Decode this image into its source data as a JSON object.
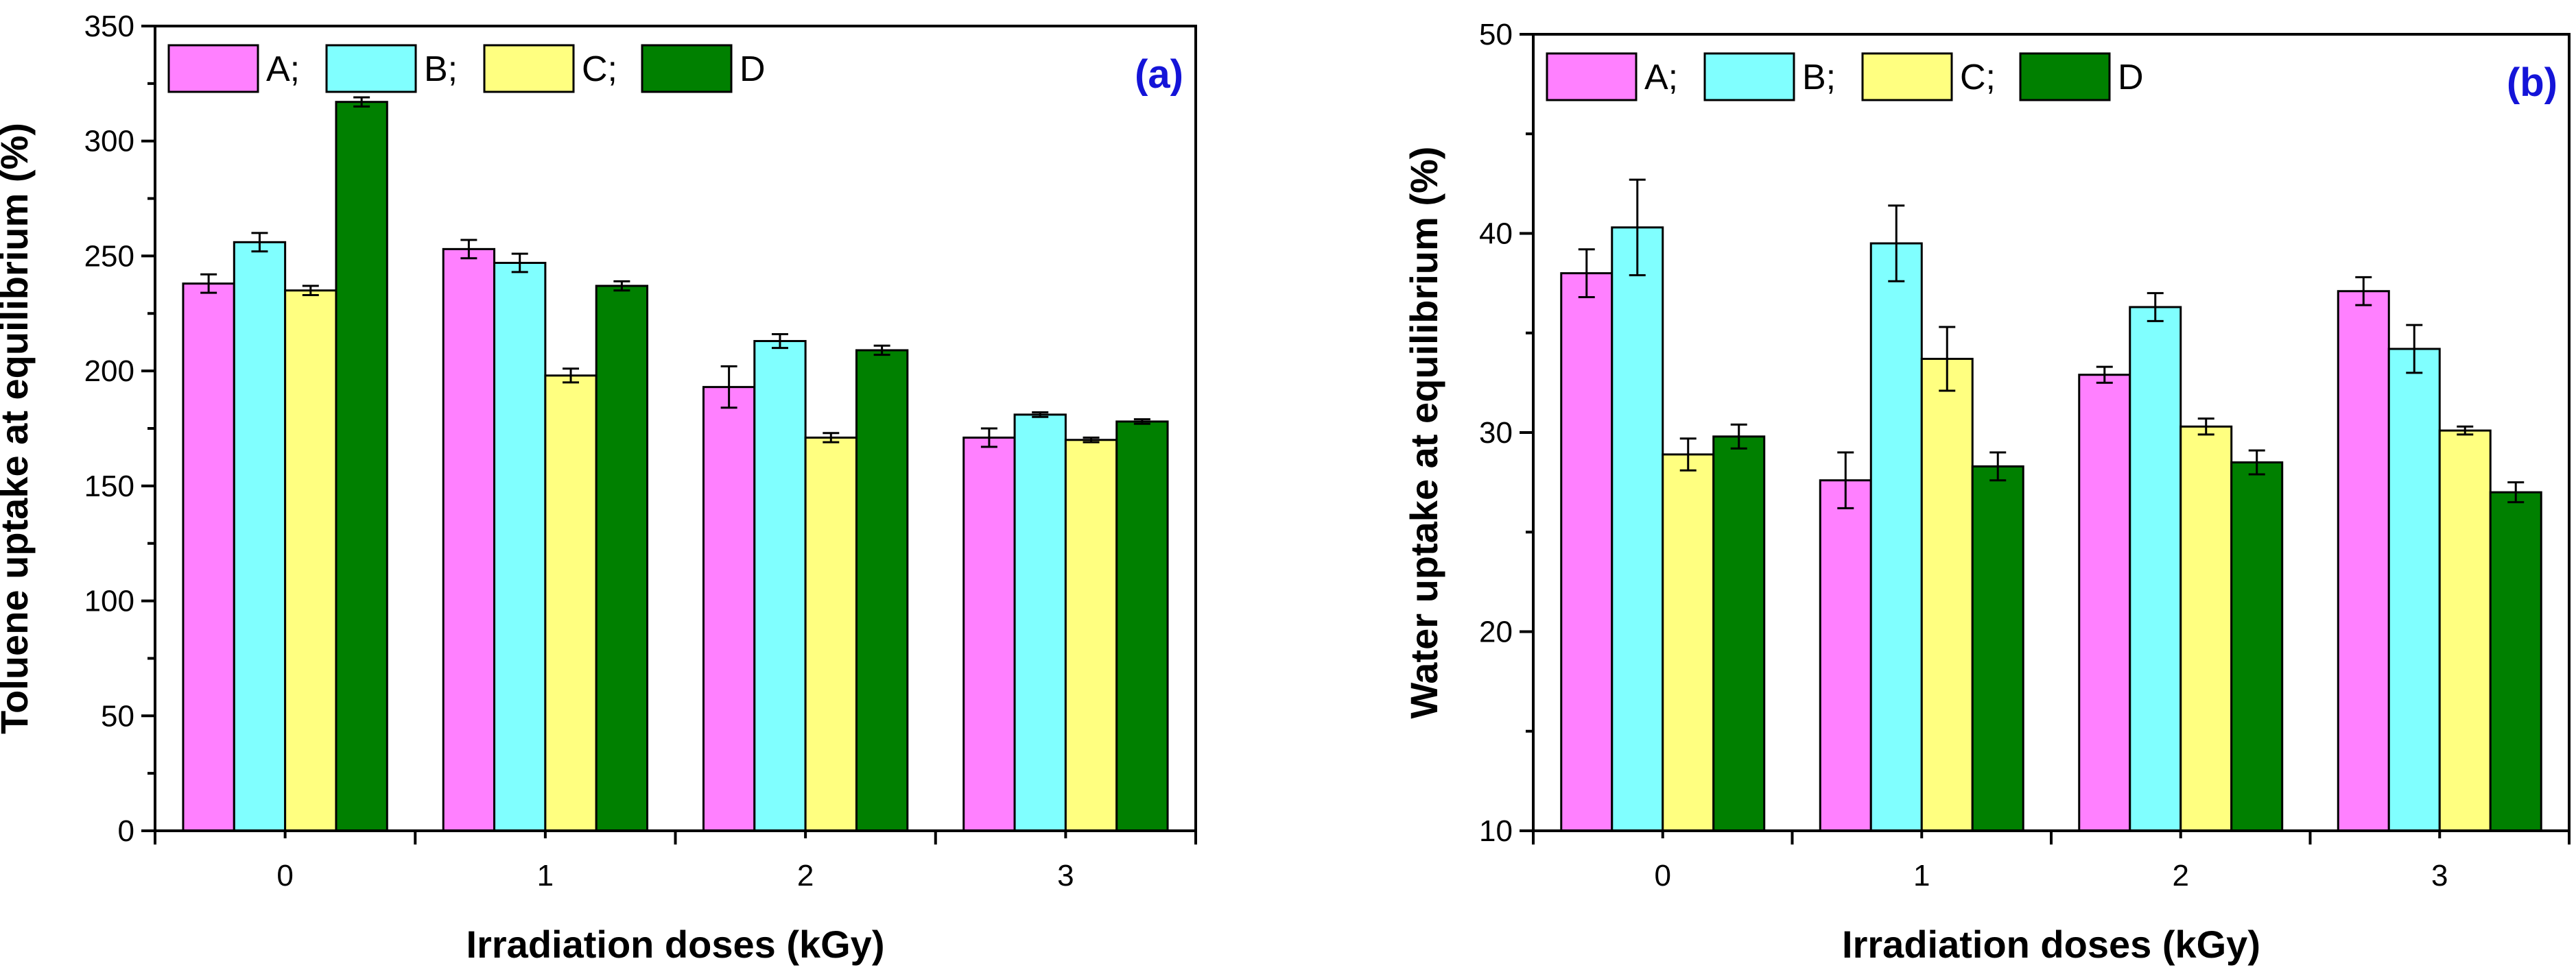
{
  "chart_data": [
    {
      "type": "bar",
      "panel_label": "(a)",
      "xlabel": "Irradiation doses (kGy)",
      "ylabel": "Toluene uptake at equilibrium (%)",
      "categories": [
        "0",
        "1",
        "2",
        "3"
      ],
      "ylim": [
        0,
        350
      ],
      "yticks": [
        0,
        50,
        100,
        150,
        200,
        250,
        300,
        350
      ],
      "legend_position": "top-left",
      "series": [
        {
          "name": "A;",
          "color": "#ff80ff",
          "values": [
            238,
            253,
            193,
            171
          ],
          "errors": [
            4,
            4,
            9,
            4
          ]
        },
        {
          "name": "B;",
          "color": "#80ffff",
          "values": [
            256,
            247,
            213,
            181
          ],
          "errors": [
            4,
            4,
            3,
            1
          ]
        },
        {
          "name": "C;",
          "color": "#ffff80",
          "values": [
            235,
            198,
            171,
            170
          ],
          "errors": [
            2,
            3,
            2,
            1
          ]
        },
        {
          "name": "D",
          "color": "#008000",
          "values": [
            317,
            237,
            209,
            178
          ],
          "errors": [
            2,
            2,
            2,
            1
          ]
        }
      ]
    },
    {
      "type": "bar",
      "panel_label": "(b)",
      "xlabel": "Irradiation doses (kGy)",
      "ylabel": "Water uptake at equilibrium (%)",
      "categories": [
        "0",
        "1",
        "2",
        "3"
      ],
      "ylim": [
        10,
        50
      ],
      "yticks": [
        10,
        20,
        30,
        40,
        50
      ],
      "legend_position": "top-left",
      "series": [
        {
          "name": "A;",
          "color": "#ff80ff",
          "values": [
            38.0,
            27.6,
            32.9,
            37.1
          ],
          "errors": [
            1.2,
            1.4,
            0.4,
            0.7
          ]
        },
        {
          "name": "B;",
          "color": "#80ffff",
          "values": [
            40.3,
            39.5,
            36.3,
            34.2
          ],
          "errors": [
            2.4,
            1.9,
            0.7,
            1.2
          ]
        },
        {
          "name": "C;",
          "color": "#ffff80",
          "values": [
            28.9,
            33.7,
            30.3,
            30.1
          ],
          "errors": [
            0.8,
            1.6,
            0.4,
            0.2
          ]
        },
        {
          "name": "D",
          "color": "#008000",
          "values": [
            29.8,
            28.3,
            28.5,
            27.0
          ],
          "errors": [
            0.6,
            0.7,
            0.6,
            0.5
          ]
        }
      ]
    }
  ]
}
